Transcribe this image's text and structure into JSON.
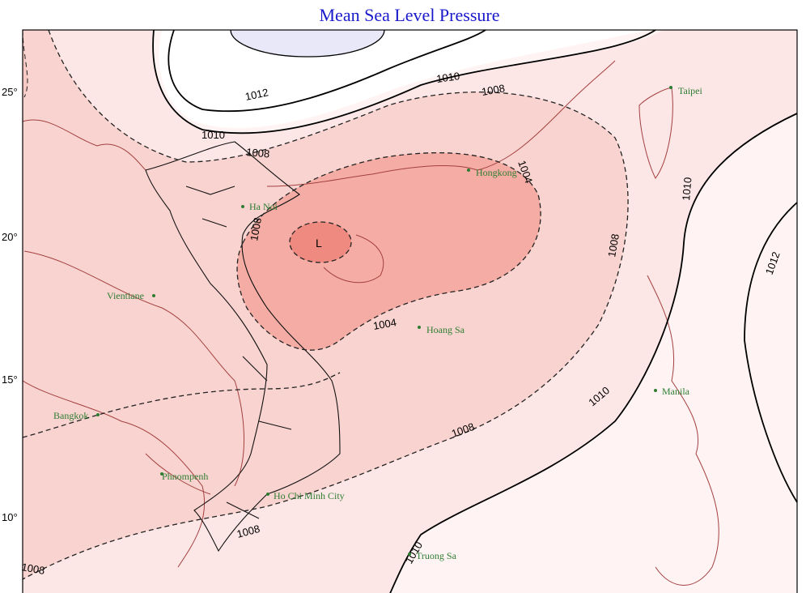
{
  "title": "Mean Sea Level Pressure",
  "lat_labels": [
    "25°",
    "20°",
    "15°",
    "10°"
  ],
  "contour_labels": [
    "1012",
    "1010",
    "1008",
    "1010",
    "1008",
    "1004",
    "1008",
    "1010",
    "1012",
    "1004",
    "1010",
    "1008",
    "1008",
    "1010",
    "1008",
    "1008"
  ],
  "low_marker": "L",
  "cities": [
    "Taipei",
    "Hongkong",
    "Ha Noi",
    "Vientiane",
    "Hoang Sa",
    "Manila",
    "Bangkok",
    "Phnompenh",
    "Ho Chi Minh City",
    "Truong Sa"
  ]
}
